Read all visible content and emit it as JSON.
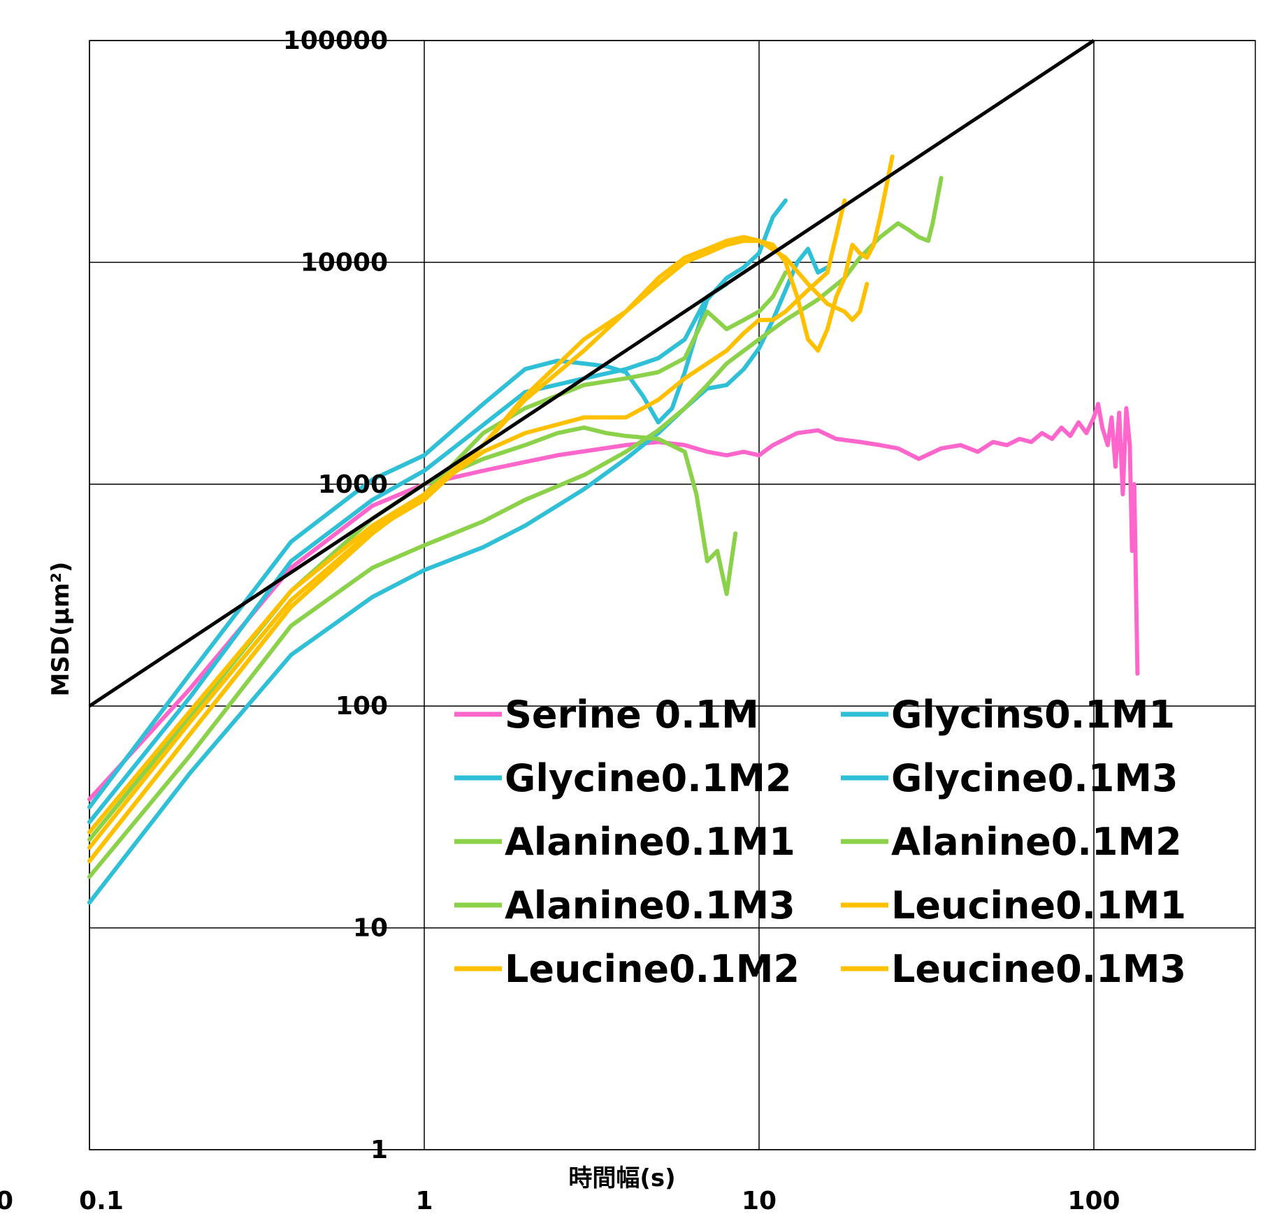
{
  "chart_data": {
    "type": "line",
    "title": "",
    "xlabel": "時間幅(s)",
    "ylabel": "MSD(µm²)",
    "x_scale": "log",
    "y_scale": "log",
    "xlim": [
      0.1,
      350
    ],
    "ylim": [
      1,
      100000
    ],
    "x_ticks": [
      {
        "value": 0.1,
        "label": "0.1"
      },
      {
        "value": 1,
        "label": "1"
      },
      {
        "value": 10,
        "label": "10"
      },
      {
        "value": 100,
        "label": "100"
      }
    ],
    "x_clipped_tick_label": "0",
    "y_ticks": [
      {
        "value": 1,
        "label": "1"
      },
      {
        "value": 10,
        "label": "10"
      },
      {
        "value": 100,
        "label": "100"
      },
      {
        "value": 1000,
        "label": "1000"
      },
      {
        "value": 10000,
        "label": "10000"
      },
      {
        "value": 100000,
        "label": "100000"
      }
    ],
    "grid": true,
    "legend_position": "lower-right, two columns",
    "reference_line": {
      "color": "#000000",
      "points": [
        [
          0.1,
          100
        ],
        [
          100,
          100000
        ]
      ]
    },
    "series": [
      {
        "name": "Serine 0.1M",
        "color": "#FF66CC",
        "points": [
          [
            0.1,
            38
          ],
          [
            0.2,
            120
          ],
          [
            0.4,
            420
          ],
          [
            0.7,
            800
          ],
          [
            1,
            1000
          ],
          [
            1.5,
            1150
          ],
          [
            2.5,
            1350
          ],
          [
            4,
            1500
          ],
          [
            5,
            1550
          ],
          [
            6,
            1500
          ],
          [
            7,
            1400
          ],
          [
            8,
            1350
          ],
          [
            9,
            1400
          ],
          [
            10,
            1350
          ],
          [
            11,
            1500
          ],
          [
            13,
            1700
          ],
          [
            15,
            1750
          ],
          [
            17,
            1600
          ],
          [
            20,
            1550
          ],
          [
            23,
            1500
          ],
          [
            26,
            1450
          ],
          [
            30,
            1300
          ],
          [
            35,
            1450
          ],
          [
            40,
            1500
          ],
          [
            45,
            1400
          ],
          [
            50,
            1550
          ],
          [
            55,
            1500
          ],
          [
            60,
            1600
          ],
          [
            65,
            1550
          ],
          [
            70,
            1700
          ],
          [
            75,
            1600
          ],
          [
            80,
            1800
          ],
          [
            85,
            1650
          ],
          [
            90,
            1900
          ],
          [
            95,
            1700
          ],
          [
            100,
            2000
          ],
          [
            103,
            2300
          ],
          [
            106,
            1800
          ],
          [
            110,
            1500
          ],
          [
            113,
            2000
          ],
          [
            116,
            1200
          ],
          [
            119,
            2100
          ],
          [
            122,
            900
          ],
          [
            125,
            2200
          ],
          [
            128,
            1500
          ],
          [
            130,
            500
          ],
          [
            132,
            1000
          ],
          [
            135,
            140
          ]
        ]
      },
      {
        "name": "Glycins0.1M1",
        "color": "#2FBFD6",
        "points": [
          [
            0.1,
            35
          ],
          [
            0.2,
            140
          ],
          [
            0.4,
            550
          ],
          [
            0.7,
            1050
          ],
          [
            1,
            1350
          ],
          [
            1.5,
            2300
          ],
          [
            2,
            3300
          ],
          [
            2.5,
            3600
          ],
          [
            3,
            3500
          ],
          [
            3.5,
            3400
          ],
          [
            4,
            3200
          ],
          [
            4.5,
            2500
          ],
          [
            5,
            1900
          ],
          [
            5.5,
            2200
          ],
          [
            6,
            3200
          ],
          [
            6.5,
            4800
          ],
          [
            7,
            6800
          ],
          [
            8,
            8500
          ],
          [
            9,
            9500
          ],
          [
            10,
            11000
          ],
          [
            11,
            16000
          ],
          [
            12,
            19000
          ]
        ]
      },
      {
        "name": "Glycine0.1M2",
        "color": "#2FBFD6",
        "points": [
          [
            0.1,
            30
          ],
          [
            0.2,
            110
          ],
          [
            0.4,
            450
          ],
          [
            0.7,
            850
          ],
          [
            1,
            1150
          ],
          [
            1.5,
            1850
          ],
          [
            2,
            2600
          ],
          [
            3,
            3000
          ],
          [
            4,
            3300
          ],
          [
            5,
            3700
          ],
          [
            6,
            4500
          ],
          [
            7,
            7000
          ],
          [
            8,
            8000
          ]
        ]
      },
      {
        "name": "Glycine0.1M3",
        "color": "#2FBFD6",
        "points": [
          [
            0.1,
            13
          ],
          [
            0.2,
            50
          ],
          [
            0.4,
            170
          ],
          [
            0.7,
            310
          ],
          [
            1,
            410
          ],
          [
            1.5,
            520
          ],
          [
            2,
            650
          ],
          [
            3,
            950
          ],
          [
            4,
            1300
          ],
          [
            5,
            1700
          ],
          [
            6,
            2200
          ],
          [
            7,
            2700
          ],
          [
            8,
            2800
          ],
          [
            9,
            3300
          ],
          [
            10,
            4100
          ],
          [
            11,
            5500
          ],
          [
            12,
            7500
          ],
          [
            13,
            10000
          ],
          [
            14,
            11500
          ],
          [
            15,
            9000
          ],
          [
            16,
            9500
          ]
        ]
      },
      {
        "name": "Alanine0.1M1",
        "color": "#8BD14A",
        "points": [
          [
            0.1,
            25
          ],
          [
            0.2,
            90
          ],
          [
            0.4,
            330
          ],
          [
            0.7,
            700
          ],
          [
            1,
            1000
          ],
          [
            1.5,
            1300
          ],
          [
            2,
            1500
          ],
          [
            2.5,
            1700
          ],
          [
            3,
            1800
          ],
          [
            3.5,
            1700
          ],
          [
            4,
            1650
          ],
          [
            5,
            1600
          ],
          [
            6,
            1400
          ],
          [
            6.5,
            900
          ],
          [
            7,
            450
          ],
          [
            7.5,
            500
          ],
          [
            8,
            320
          ],
          [
            8.5,
            600
          ]
        ]
      },
      {
        "name": "Alanine0.1M2",
        "color": "#8BD14A",
        "points": [
          [
            0.1,
            20
          ],
          [
            0.2,
            75
          ],
          [
            0.4,
            280
          ],
          [
            0.7,
            600
          ],
          [
            1,
            900
          ],
          [
            1.5,
            1700
          ],
          [
            2,
            2200
          ],
          [
            3,
            2800
          ],
          [
            4,
            3000
          ],
          [
            5,
            3200
          ],
          [
            6,
            3700
          ],
          [
            7,
            6000
          ],
          [
            8,
            5000
          ],
          [
            9,
            5500
          ],
          [
            10,
            6000
          ],
          [
            11,
            7000
          ],
          [
            12,
            9000
          ]
        ]
      },
      {
        "name": "Alanine0.1M3",
        "color": "#8BD14A",
        "points": [
          [
            0.1,
            17
          ],
          [
            0.2,
            60
          ],
          [
            0.4,
            230
          ],
          [
            0.7,
            420
          ],
          [
            1,
            530
          ],
          [
            1.5,
            680
          ],
          [
            2,
            850
          ],
          [
            3,
            1100
          ],
          [
            4,
            1400
          ],
          [
            5,
            1750
          ],
          [
            6,
            2200
          ],
          [
            7,
            2800
          ],
          [
            8,
            3500
          ],
          [
            10,
            4500
          ],
          [
            12,
            5500
          ],
          [
            15,
            6800
          ],
          [
            18,
            8500
          ],
          [
            20,
            10500
          ],
          [
            23,
            13000
          ],
          [
            26,
            15000
          ],
          [
            28,
            14000
          ],
          [
            30,
            13000
          ],
          [
            32,
            12500
          ],
          [
            33,
            15000
          ],
          [
            35,
            24000
          ]
        ]
      },
      {
        "name": "Leucine0.1M1",
        "color": "#FFC000",
        "points": [
          [
            0.1,
            27
          ],
          [
            0.2,
            95
          ],
          [
            0.4,
            330
          ],
          [
            0.7,
            650
          ],
          [
            1,
            900
          ],
          [
            1.5,
            1500
          ],
          [
            2,
            2500
          ],
          [
            3,
            4500
          ],
          [
            4,
            6000
          ],
          [
            5,
            8000
          ],
          [
            6,
            10000
          ],
          [
            7,
            11000
          ],
          [
            8,
            12000
          ],
          [
            9,
            12500
          ],
          [
            10,
            12500
          ],
          [
            11,
            12000
          ],
          [
            12,
            10000
          ],
          [
            13,
            7000
          ],
          [
            14,
            4500
          ],
          [
            15,
            4000
          ],
          [
            16,
            5000
          ],
          [
            17,
            7000
          ],
          [
            18,
            8500
          ],
          [
            19,
            12000
          ],
          [
            20,
            11000
          ],
          [
            21,
            10500
          ],
          [
            22,
            12000
          ],
          [
            23,
            16000
          ],
          [
            25,
            30000
          ]
        ]
      },
      {
        "name": "Leucine0.1M2",
        "color": "#FFC000",
        "points": [
          [
            0.1,
            20
          ],
          [
            0.2,
            75
          ],
          [
            0.4,
            280
          ],
          [
            0.7,
            600
          ],
          [
            1,
            900
          ],
          [
            1.5,
            1400
          ],
          [
            2,
            1700
          ],
          [
            3,
            2000
          ],
          [
            4,
            2000
          ],
          [
            5,
            2400
          ],
          [
            6,
            3000
          ],
          [
            7,
            3500
          ],
          [
            8,
            4000
          ],
          [
            9,
            4800
          ],
          [
            10,
            5500
          ],
          [
            11,
            5500
          ],
          [
            12,
            6000
          ],
          [
            14,
            7500
          ],
          [
            16,
            9000
          ],
          [
            18,
            19000
          ]
        ]
      },
      {
        "name": "Leucine0.1M3",
        "color": "#FFC000",
        "points": [
          [
            0.1,
            23
          ],
          [
            0.2,
            85
          ],
          [
            0.4,
            300
          ],
          [
            0.7,
            620
          ],
          [
            1,
            850
          ],
          [
            1.5,
            1500
          ],
          [
            2,
            2400
          ],
          [
            3,
            4000
          ],
          [
            4,
            6000
          ],
          [
            5,
            8500
          ],
          [
            6,
            10500
          ],
          [
            7,
            11500
          ],
          [
            8,
            12500
          ],
          [
            9,
            13000
          ],
          [
            10,
            12500
          ],
          [
            12,
            10500
          ],
          [
            14,
            8000
          ],
          [
            16,
            6500
          ],
          [
            18,
            6000
          ],
          [
            19,
            5500
          ],
          [
            20,
            6000
          ],
          [
            21,
            8000
          ]
        ]
      }
    ]
  }
}
